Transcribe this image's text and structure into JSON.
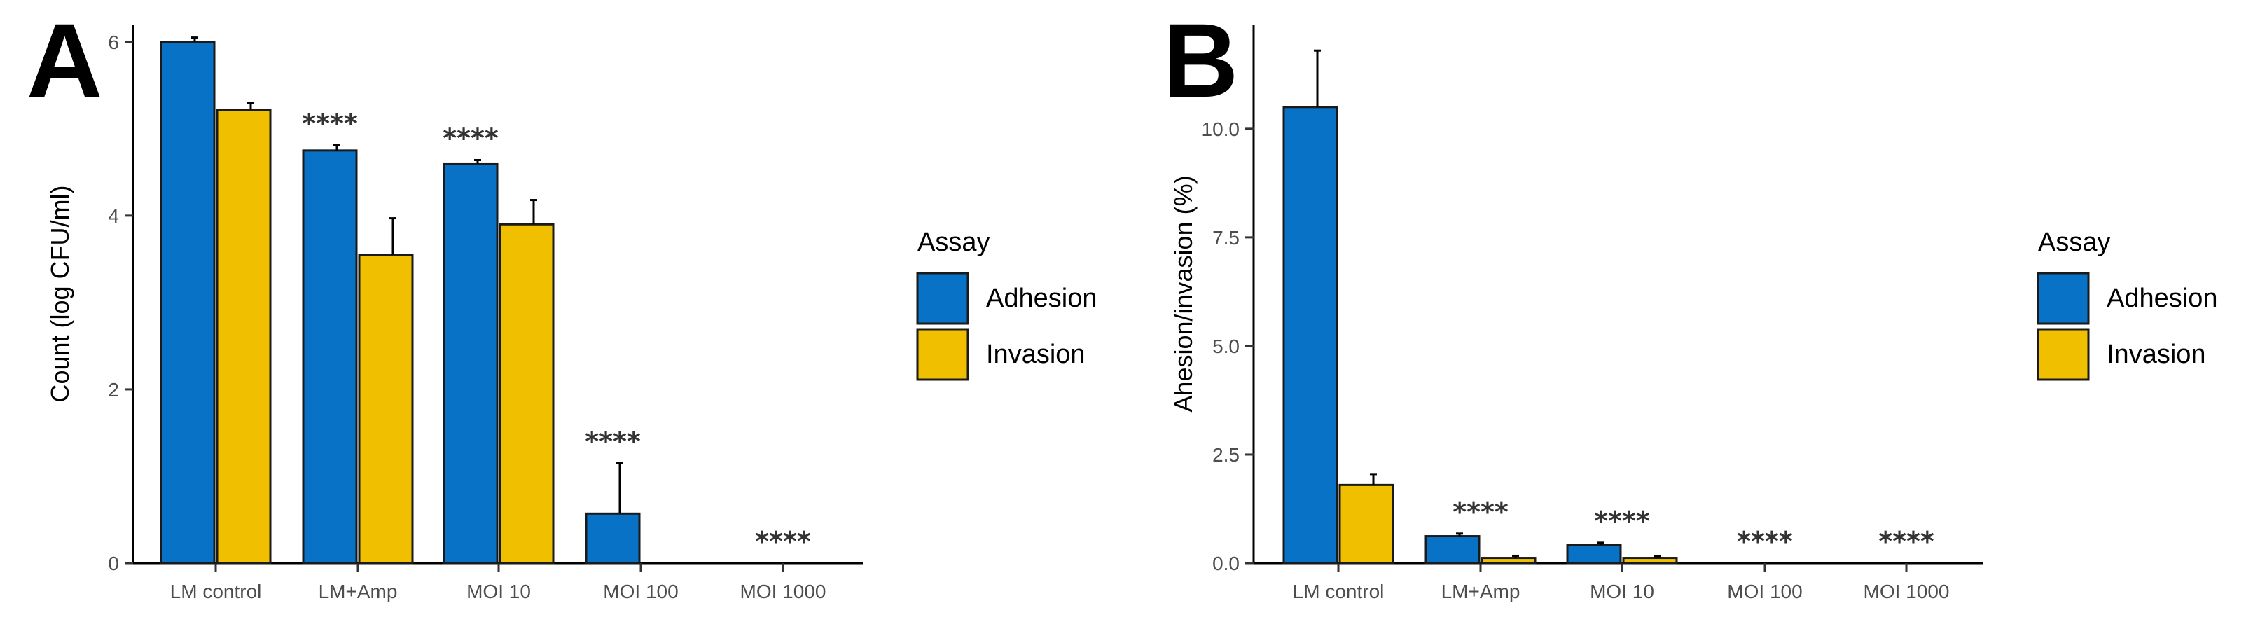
{
  "figure": {
    "legend_title": "Assay",
    "series_names": [
      "Adhesion",
      "Invasion"
    ],
    "colors": {
      "Adhesion": "#0872c6",
      "Invasion": "#f0c000"
    }
  },
  "chart_data": [
    {
      "type": "bar",
      "panel_label": "A",
      "title": "",
      "xlabel": "",
      "ylabel": "Count (log CFU/ml)",
      "ylim": [
        0,
        6.2
      ],
      "yticks": [
        0,
        2,
        4,
        6
      ],
      "ytick_labels": [
        "0",
        "2",
        "4",
        "6"
      ],
      "categories": [
        "LM control",
        "LM+Amp",
        "MOI 10",
        "MOI 100",
        "MOI 1000"
      ],
      "series": [
        {
          "name": "Adhesion",
          "values": [
            6.0,
            4.75,
            4.6,
            0.57,
            0.0
          ],
          "errors": [
            0.05,
            0.06,
            0.04,
            0.58,
            0.0
          ]
        },
        {
          "name": "Invasion",
          "values": [
            5.22,
            3.55,
            3.9,
            0.0,
            0.0
          ],
          "errors": [
            0.08,
            0.42,
            0.28,
            0.0,
            0.0
          ]
        }
      ],
      "annotations": [
        {
          "category": 1,
          "series": 0,
          "text": "****"
        },
        {
          "category": 2,
          "series": 0,
          "text": "****"
        },
        {
          "category": 3,
          "series": 0,
          "text": "****"
        },
        {
          "category": 4,
          "series": "group",
          "text": "****"
        }
      ],
      "legend": {
        "title": "Assay",
        "position": "right"
      }
    },
    {
      "type": "bar",
      "panel_label": "B",
      "title": "",
      "xlabel": "",
      "ylabel": "Ahesion/invasion (%)",
      "ylim": [
        0,
        12.4
      ],
      "yticks": [
        0,
        2.5,
        5,
        7.5,
        10
      ],
      "ytick_labels": [
        "0.0",
        "2.5",
        "5.0",
        "7.5",
        "10.0"
      ],
      "categories": [
        "LM control",
        "LM+Amp",
        "MOI 10",
        "MOI 100",
        "MOI 1000"
      ],
      "series": [
        {
          "name": "Adhesion",
          "values": [
            10.5,
            0.62,
            0.42,
            0.0,
            0.0
          ],
          "errors": [
            1.3,
            0.06,
            0.05,
            0.0,
            0.0
          ]
        },
        {
          "name": "Invasion",
          "values": [
            1.8,
            0.12,
            0.12,
            0.0,
            0.0
          ],
          "errors": [
            0.25,
            0.05,
            0.04,
            0.0,
            0.0
          ]
        }
      ],
      "annotations": [
        {
          "category": 1,
          "series": "group",
          "text": "****"
        },
        {
          "category": 2,
          "series": "group",
          "text": "****"
        },
        {
          "category": 3,
          "series": "group",
          "text": "****"
        },
        {
          "category": 4,
          "series": "group",
          "text": "****"
        }
      ],
      "legend": {
        "title": "Assay",
        "position": "right"
      }
    }
  ]
}
